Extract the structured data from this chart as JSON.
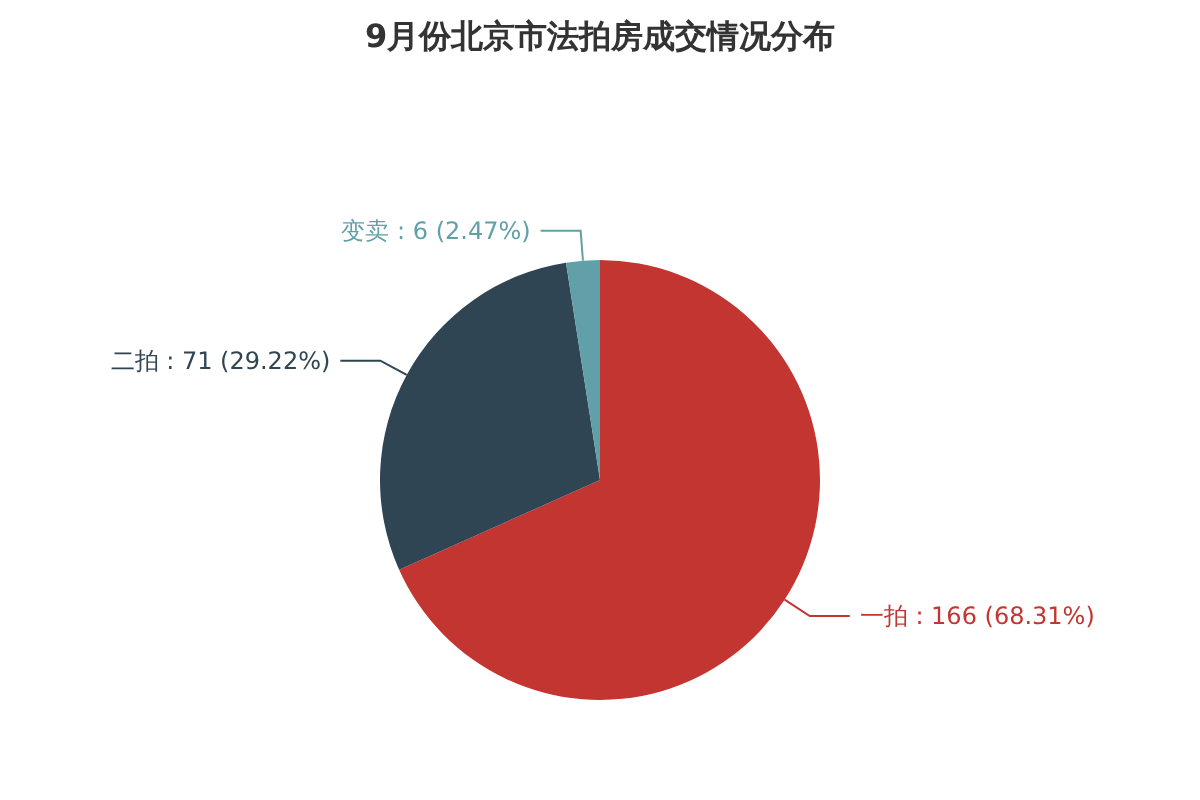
{
  "chart_data": {
    "type": "pie",
    "title": "9月份北京市法拍房成交情况分布",
    "categories": [
      "一拍",
      "二拍",
      "变卖"
    ],
    "values": [
      166,
      71,
      6
    ],
    "colors": [
      "#c23531",
      "#2f4554",
      "#61a0a8"
    ],
    "value_labels": [
      ": 166 (68.31%)",
      ": 71 (29.22%)",
      ": 6 (2.47%)"
    ],
    "legend": false
  }
}
